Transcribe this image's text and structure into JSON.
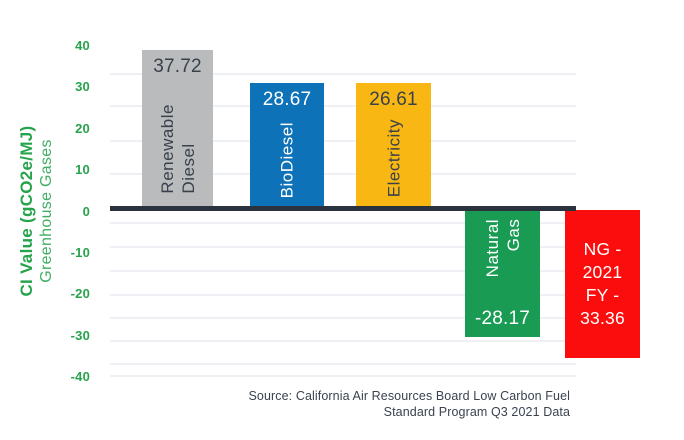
{
  "chart_data": {
    "type": "bar",
    "title": "",
    "y_axis": {
      "title_line1": "CI Value (gCO2e/MJ)",
      "title_line2": "Greenhouse Gases",
      "ticks": [
        40,
        30,
        20,
        10,
        0,
        -10,
        -20,
        -30,
        -40
      ],
      "range": [
        -40,
        40
      ]
    },
    "categories": [
      "Renewable Diesel",
      "BioDiesel",
      "Electricity",
      "Natural Gas",
      "NG - 2021 FY"
    ],
    "values": [
      37.72,
      28.67,
      26.61,
      -28.17,
      -33.36
    ],
    "grid": true,
    "legend": "none",
    "bars": [
      {
        "name": "renewable-diesel",
        "label_lines": "Renewable\nDiesel",
        "value": 37.72,
        "value_text": "37.72",
        "color": "#b9bbbd",
        "label_color": "#39414b"
      },
      {
        "name": "biodiesel",
        "label_lines": "BioDiesel",
        "value": 28.67,
        "value_text": "28.67",
        "color": "#0e72b8",
        "label_color": "#ffffff"
      },
      {
        "name": "electricity",
        "label_lines": "Electricity",
        "value": 26.61,
        "value_text": "26.61",
        "color": "#f8b713",
        "label_color": "#39414b"
      },
      {
        "name": "natural-gas",
        "label_lines": "Natural\nGas",
        "value": -28.17,
        "value_text": "-28.17",
        "color": "#1a9b54",
        "label_color": "#ffffff"
      },
      {
        "name": "ng-2021-fy",
        "label_lines": "NG -\n2021\nFY -\n33.36",
        "value": -33.36,
        "value_text": "33.36",
        "color": "#fb0d0d",
        "label_color": "#ffffff"
      }
    ],
    "source_line1": "Source: California Air Resources Board Low Carbon Fuel",
    "source_line2": "Standard Program Q3 2021 Data"
  },
  "colors": {
    "axis_text": "#27a34c",
    "axis_text_secondary": "#3fae63",
    "zero_line": "#2a323e",
    "gridline": "#eef0f4",
    "source_text": "#3a4350",
    "background": "#ffffff"
  }
}
